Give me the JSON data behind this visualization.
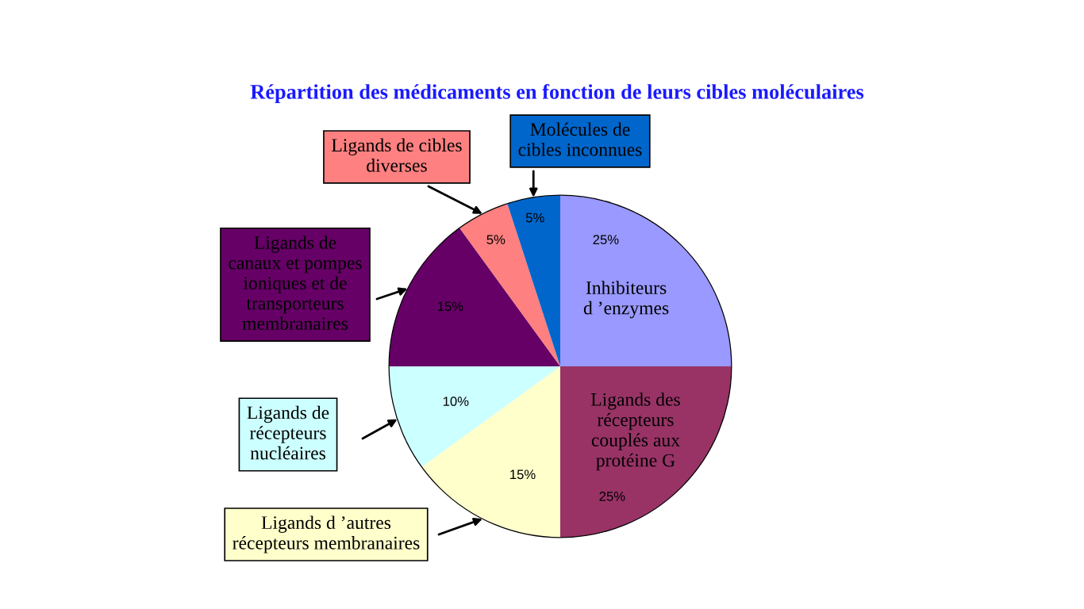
{
  "chart_data": {
    "type": "pie",
    "title": "Répartition des médicaments en fonction de leurs cibles moléculaires",
    "categories": [
      "Inhibiteurs\nd ’enzymes",
      "Ligands des\nrécepteurs\ncouplés aux\nprotéine G",
      "Ligands d ’autres\nrécepteurs membranaires",
      "Ligands de\nrécepteurs\nnucléaires",
      "Ligands de\ncanaux et pompes\nioniques et de\ntransporteurs\nmembranaires",
      "Ligands de cibles\ndiverses",
      "Molécules de\ncibles inconnues"
    ],
    "values": [
      25,
      25,
      15,
      10,
      15,
      5,
      5
    ],
    "colors": [
      "#9999ff",
      "#993366",
      "#ffffcc",
      "#ccffff",
      "#660066",
      "#ff8080",
      "#0066cc"
    ],
    "value_labels": [
      "25%",
      "25%",
      "15%",
      "10%",
      "15%",
      "5%",
      "5%"
    ]
  }
}
